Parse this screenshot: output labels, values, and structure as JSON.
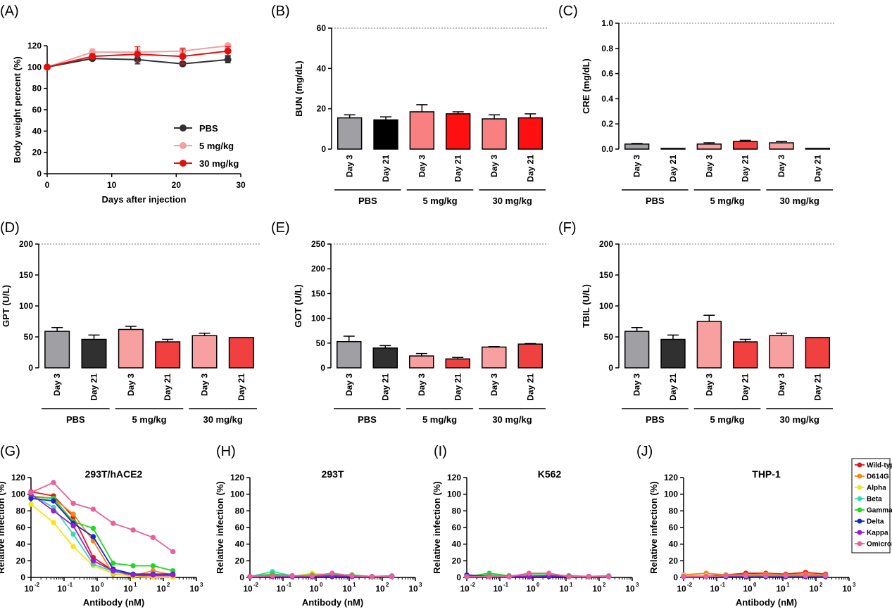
{
  "chart_data": [
    {
      "panel": "(A)",
      "type": "line",
      "xlabel": "Days after injection",
      "ylabel": "Body weight percent (%)",
      "xlim": [
        0,
        30
      ],
      "ylim": [
        0,
        120
      ],
      "xticks": [
        0,
        10,
        20,
        30
      ],
      "yticks": [
        0,
        20,
        40,
        60,
        80,
        100,
        120
      ],
      "x": [
        0,
        7,
        14,
        21,
        28
      ],
      "series": [
        {
          "name": "PBS",
          "color": "#303030",
          "values": [
            100,
            108,
            107,
            103,
            107
          ],
          "errors": [
            0,
            2,
            4,
            2,
            3
          ]
        },
        {
          "name": "5 mg/kg",
          "color": "#f4a0a0",
          "values": [
            100,
            114,
            114,
            115,
            120
          ],
          "errors": [
            0,
            3,
            3,
            3,
            2
          ]
        },
        {
          "name": "30 mg/kg",
          "color": "#e01010",
          "values": [
            100,
            110,
            112,
            110,
            115
          ],
          "errors": [
            0,
            2,
            7,
            7,
            4
          ]
        }
      ],
      "legend": "right"
    },
    {
      "panel": "(B)",
      "type": "bar",
      "ylabel": "BUN (mg/dL)",
      "ylim": [
        0,
        60
      ],
      "yticks": [
        0,
        20,
        40,
        60
      ],
      "ref_line": 60,
      "categories": [
        "Day 3",
        "Day 21",
        "Day 3",
        "Day 21",
        "Day 3",
        "Day 21"
      ],
      "groups": [
        "PBS",
        "5 mg/kg",
        "30 mg/kg"
      ],
      "values": [
        15.5,
        14.5,
        18.5,
        17.5,
        15.0,
        15.5
      ],
      "errors": [
        1.5,
        1.5,
        3.5,
        1.0,
        2.0,
        2.0
      ],
      "colors": [
        "#a0a0a4",
        "#000000",
        "#f88080",
        "#ff1010",
        "#f88080",
        "#ff1010"
      ]
    },
    {
      "panel": "(C)",
      "type": "bar",
      "ylabel": "CRE (mg/dL)",
      "ylim": [
        0,
        1.0
      ],
      "yticks": [
        "0.0",
        "0.2",
        "0.4",
        "0.6",
        "0.8",
        "1.0"
      ],
      "ref_line": 1.0,
      "categories": [
        "Day 3",
        "Day 21",
        "Day 3",
        "Day 21",
        "Day 3",
        "Day 21"
      ],
      "groups": [
        "PBS",
        "5 mg/kg",
        "30 mg/kg"
      ],
      "values": [
        0.04,
        0.0,
        0.04,
        0.06,
        0.05,
        0.0
      ],
      "errors": [
        0.005,
        0.0,
        0.01,
        0.01,
        0.01,
        0.0
      ],
      "colors": [
        "#a0a0a4",
        "#303030",
        "#f8a0a0",
        "#f04040",
        "#f8a0a0",
        "#f04040"
      ]
    },
    {
      "panel": "(D)",
      "type": "bar",
      "ylabel": "GPT (U/L)",
      "ylim": [
        0,
        200
      ],
      "yticks": [
        0,
        50,
        100,
        150,
        200
      ],
      "ref_line": 200,
      "categories": [
        "Day 3",
        "Day 21",
        "Day 3",
        "Day 21",
        "Day 3",
        "Day 21"
      ],
      "groups": [
        "PBS",
        "5 mg/kg",
        "30 mg/kg"
      ],
      "values": [
        59,
        46,
        62,
        42,
        52,
        49
      ],
      "errors": [
        6,
        7,
        5,
        4,
        4,
        0
      ],
      "colors": [
        "#a0a0a4",
        "#303030",
        "#f8a0a0",
        "#f04040",
        "#f8a0a0",
        "#f04040"
      ]
    },
    {
      "panel": "(E)",
      "type": "bar",
      "ylabel": "GOT (U/L)",
      "ylim": [
        0,
        250
      ],
      "yticks": [
        0,
        50,
        100,
        150,
        200,
        250
      ],
      "ref_line": 250,
      "categories": [
        "Day 3",
        "Day 21",
        "Day 3",
        "Day 21",
        "Day 3",
        "Day 21"
      ],
      "groups": [
        "PBS",
        "5 mg/kg",
        "30 mg/kg"
      ],
      "values": [
        53,
        40,
        24,
        18,
        42,
        48
      ],
      "errors": [
        11,
        5,
        5,
        3,
        1,
        1
      ],
      "colors": [
        "#a0a0a4",
        "#303030",
        "#f8a0a0",
        "#f04040",
        "#f8a0a0",
        "#f04040"
      ]
    },
    {
      "panel": "(F)",
      "type": "bar",
      "ylabel": "TBIL (U/L)",
      "ylim": [
        0,
        200
      ],
      "yticks": [
        0,
        50,
        100,
        150,
        200
      ],
      "ref_line": 200,
      "categories": [
        "Day 3",
        "Day 21",
        "Day 3",
        "Day 21",
        "Day 3",
        "Day 21"
      ],
      "groups": [
        "PBS",
        "5 mg/kg",
        "30 mg/kg"
      ],
      "values": [
        59,
        46,
        75,
        42,
        52,
        49
      ],
      "errors": [
        6,
        7,
        10,
        4,
        4,
        0
      ],
      "colors": [
        "#a0a0a4",
        "#303030",
        "#f8a0a0",
        "#f04040",
        "#f8a0a0",
        "#f04040"
      ]
    },
    {
      "panel": "(G)",
      "type": "line",
      "title": "293T/hACE2",
      "xscale": "log",
      "xlabel": "Antibody (nM)",
      "ylabel": "Relative infection (%)",
      "xlim": [
        0.01,
        1000
      ],
      "ylim": [
        0,
        120
      ],
      "yticks": [
        0,
        20,
        40,
        60,
        80,
        100,
        120
      ],
      "xtick_base": "10",
      "xtick_exps": [
        "-2",
        "-1",
        "0",
        "1",
        "2",
        "3"
      ],
      "x": [
        0.01,
        0.048,
        0.19,
        0.76,
        3.05,
        12.2,
        48.8,
        195
      ],
      "series": [
        {
          "name": "Wild-type",
          "color": "#e8141c",
          "values": [
            103,
            98,
            73,
            24,
            8,
            2,
            2,
            2
          ]
        },
        {
          "name": "D614G",
          "color": "#f08a1c",
          "values": [
            98,
            95,
            76,
            44,
            4,
            2,
            8,
            3
          ]
        },
        {
          "name": "Alpha",
          "color": "#f5e614",
          "values": [
            88,
            66,
            37,
            14,
            5,
            1,
            0,
            0
          ]
        },
        {
          "name": "Beta",
          "color": "#3ad6b4",
          "values": [
            100,
            84,
            52,
            16,
            7,
            3,
            3,
            3
          ]
        },
        {
          "name": "Gamma",
          "color": "#22d822",
          "values": [
            97,
            95,
            67,
            59,
            17,
            14,
            14,
            8
          ]
        },
        {
          "name": "Delta",
          "color": "#1428d0",
          "values": [
            95,
            92,
            65,
            49,
            10,
            4,
            4,
            4
          ]
        },
        {
          "name": "Kappa",
          "color": "#9a1ed0",
          "values": [
            100,
            80,
            62,
            20,
            8,
            3,
            3,
            3
          ]
        },
        {
          "name": "Omicron",
          "color": "#e8609c",
          "values": [
            102,
            114,
            89,
            82,
            65,
            57,
            48,
            31
          ]
        }
      ]
    },
    {
      "panel": "(H)",
      "type": "line",
      "title": "293T",
      "xscale": "log",
      "xlabel": "Antibody (nM)",
      "ylabel": "Relative infection (%)",
      "xlim": [
        0.01,
        1000
      ],
      "ylim": [
        0,
        120
      ],
      "yticks": [
        0,
        20,
        40,
        60,
        80,
        100,
        120
      ],
      "xtick_base": "10",
      "xtick_exps": [
        "-2",
        "-1",
        "0",
        "1",
        "2",
        "3"
      ],
      "x": [
        0.01,
        0.048,
        0.19,
        0.76,
        3.05,
        12.2,
        48.8,
        195
      ],
      "series": [
        {
          "name": "Wild-type",
          "color": "#e8141c",
          "values": [
            1,
            2,
            1,
            1,
            2,
            1,
            1,
            1
          ]
        },
        {
          "name": "D614G",
          "color": "#f08a1c",
          "values": [
            1,
            3,
            2,
            2,
            3,
            2,
            1,
            2
          ]
        },
        {
          "name": "Alpha",
          "color": "#f5e614",
          "values": [
            1,
            2,
            1,
            5,
            3,
            1,
            1,
            1
          ]
        },
        {
          "name": "Beta",
          "color": "#3ad6b4",
          "values": [
            1,
            7,
            2,
            2,
            3,
            3,
            1,
            2
          ]
        },
        {
          "name": "Gamma",
          "color": "#22d822",
          "values": [
            1,
            4,
            2,
            3,
            3,
            3,
            1,
            1
          ]
        },
        {
          "name": "Delta",
          "color": "#1428d0",
          "values": [
            1,
            1,
            1,
            1,
            1,
            1,
            1,
            1
          ]
        },
        {
          "name": "Kappa",
          "color": "#9a1ed0",
          "values": [
            1,
            1,
            1,
            1,
            2,
            1,
            1,
            1
          ]
        },
        {
          "name": "Omicron",
          "color": "#e8609c",
          "values": [
            1,
            2,
            2,
            2,
            5,
            2,
            1,
            1
          ]
        }
      ]
    },
    {
      "panel": "(I)",
      "type": "line",
      "title": "K562",
      "xscale": "log",
      "xlabel": "",
      "ylabel": "Relative infection (%)",
      "xlim": [
        0.01,
        1000
      ],
      "ylim": [
        0,
        120
      ],
      "yticks": [
        0,
        20,
        40,
        60,
        80,
        100,
        120
      ],
      "xtick_base": "10",
      "xtick_exps": [
        "-2",
        "-1",
        "0",
        "1",
        "2",
        "3"
      ],
      "x": [
        0.01,
        0.048,
        0.19,
        0.76,
        3.05,
        12.2,
        48.8,
        195
      ],
      "series": [
        {
          "name": "Wild-type",
          "color": "#e8141c",
          "values": [
            1,
            1,
            1,
            1,
            2,
            1,
            1,
            1
          ]
        },
        {
          "name": "D614G",
          "color": "#f08a1c",
          "values": [
            1,
            2,
            2,
            2,
            2,
            2,
            1,
            2
          ]
        },
        {
          "name": "Alpha",
          "color": "#f5e614",
          "values": [
            1,
            1,
            1,
            2,
            2,
            1,
            1,
            1
          ]
        },
        {
          "name": "Beta",
          "color": "#3ad6b4",
          "values": [
            2,
            3,
            2,
            3,
            3,
            2,
            1,
            2
          ]
        },
        {
          "name": "Gamma",
          "color": "#22d822",
          "values": [
            1,
            5,
            2,
            3,
            3,
            2,
            1,
            1
          ]
        },
        {
          "name": "Delta",
          "color": "#1428d0",
          "values": [
            3,
            1,
            1,
            1,
            1,
            1,
            1,
            1
          ]
        },
        {
          "name": "Kappa",
          "color": "#9a1ed0",
          "values": [
            1,
            1,
            1,
            1,
            2,
            1,
            1,
            1
          ]
        },
        {
          "name": "Omicron",
          "color": "#e8609c",
          "values": [
            1,
            1,
            1,
            5,
            5,
            1,
            1,
            1
          ]
        }
      ]
    },
    {
      "panel": "(J)",
      "type": "line",
      "title": "THP-1",
      "xscale": "log",
      "xlabel": "Antibody (nM)",
      "ylabel": "Relative infection (%)",
      "xlim": [
        0.01,
        1000
      ],
      "ylim": [
        0,
        120
      ],
      "yticks": [
        0,
        20,
        40,
        60,
        80,
        100,
        120
      ],
      "xtick_base": "10",
      "xtick_exps": [
        "-2",
        "-1",
        "0",
        "1",
        "2",
        "3"
      ],
      "x": [
        0.01,
        0.048,
        0.19,
        0.76,
        3.05,
        12.2,
        48.8,
        195
      ],
      "series": [
        {
          "name": "Wild-type",
          "color": "#e8141c",
          "values": [
            2,
            2,
            3,
            5,
            5,
            4,
            6,
            4
          ]
        },
        {
          "name": "D614G",
          "color": "#f08a1c",
          "values": [
            3,
            5,
            3,
            3,
            4,
            3,
            4,
            3
          ]
        },
        {
          "name": "Alpha",
          "color": "#f5e614",
          "values": [
            2,
            2,
            1,
            2,
            2,
            2,
            2,
            2
          ]
        },
        {
          "name": "Beta",
          "color": "#3ad6b4",
          "values": [
            1,
            1,
            1,
            1,
            1,
            1,
            1,
            1
          ]
        },
        {
          "name": "Gamma",
          "color": "#22d822",
          "values": [
            1,
            1,
            1,
            2,
            2,
            2,
            2,
            2
          ]
        },
        {
          "name": "Delta",
          "color": "#1428d0",
          "values": [
            1,
            1,
            1,
            1,
            1,
            1,
            1,
            1
          ]
        },
        {
          "name": "Kappa",
          "color": "#9a1ed0",
          "values": [
            1,
            1,
            2,
            2,
            2,
            2,
            2,
            2
          ]
        },
        {
          "name": "Omicron",
          "color": "#e8609c",
          "values": [
            1,
            1,
            2,
            2,
            2,
            2,
            2,
            2
          ]
        }
      ]
    }
  ],
  "variant_legend": {
    "entries": [
      "Wild-type",
      "D614G",
      "Alpha",
      "Beta",
      "Gamma",
      "Delta",
      "Kappa",
      "Omicron"
    ],
    "colors": [
      "#e8141c",
      "#f08a1c",
      "#f5e614",
      "#3ad6b4",
      "#22d822",
      "#1428d0",
      "#9a1ed0",
      "#e8609c"
    ]
  }
}
